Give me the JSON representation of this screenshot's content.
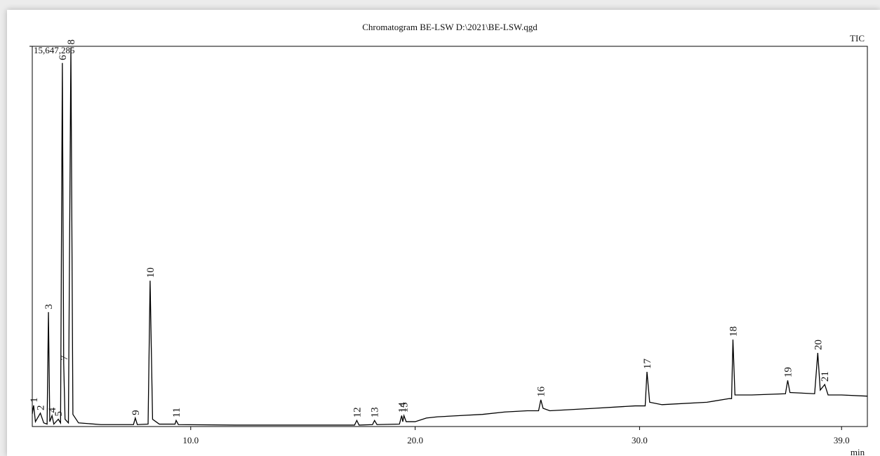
{
  "chart_data": {
    "type": "line",
    "title": "Chromatogram BE-LSW D:\\2021\\BE-LSW.qgd",
    "x_label": "min",
    "xlim": [
      2.94,
      40.15
    ],
    "xticks": [
      {
        "value": 10,
        "label": "10.0"
      },
      {
        "value": 20,
        "label": "20.0"
      },
      {
        "value": 30,
        "label": "30.0"
      },
      {
        "value": 39,
        "label": "39.0"
      }
    ],
    "ylim": [
      0,
      15647285
    ],
    "yticks": [
      {
        "value": 15647285,
        "label": "15,647,285"
      }
    ],
    "x": [
      2.94,
      3.0,
      3.08,
      3.3,
      3.45,
      3.6,
      3.66,
      3.72,
      3.82,
      3.9,
      4.1,
      4.2,
      4.28,
      4.34,
      4.4,
      4.55,
      4.66,
      4.75,
      5.0,
      6.0,
      7.45,
      7.53,
      7.62,
      8.1,
      8.19,
      8.3,
      8.6,
      9.3,
      9.35,
      9.45,
      12.0,
      15.0,
      17.3,
      17.4,
      17.5,
      18.1,
      18.19,
      18.3,
      19.3,
      19.4,
      19.45,
      19.5,
      19.6,
      20.0,
      20.5,
      21.0,
      22.0,
      23.0,
      24.0,
      25.0,
      25.5,
      25.6,
      25.7,
      26.0,
      28.0,
      29.8,
      30.25,
      30.33,
      30.45,
      31.0,
      33.0,
      34.0,
      34.1,
      34.16,
      34.25,
      35.0,
      36.5,
      36.6,
      36.7,
      37.8,
      37.94,
      38.05,
      38.25,
      38.4,
      39.0,
      40.15
    ],
    "point_labels": [
      null,
      "1",
      null,
      "2",
      null,
      null,
      "3",
      null,
      "4",
      null,
      "5",
      null,
      "6",
      "7",
      null,
      null,
      "8",
      null,
      null,
      null,
      null,
      "9",
      null,
      null,
      "10",
      null,
      null,
      null,
      "11",
      null,
      null,
      null,
      null,
      "12",
      null,
      null,
      "13",
      null,
      null,
      "14",
      null,
      "15",
      null,
      null,
      null,
      null,
      null,
      null,
      null,
      null,
      null,
      "16",
      null,
      null,
      null,
      null,
      null,
      "17",
      null,
      null,
      null,
      null,
      null,
      "18",
      null,
      null,
      null,
      "19",
      null,
      null,
      "20",
      null,
      "21",
      null,
      null,
      null
    ],
    "series": [
      {
        "name": "TIC",
        "color": "#000000",
        "values": [
          520000,
          870000,
          200000,
          550000,
          150000,
          100000,
          4710000,
          200000,
          450000,
          100000,
          300000,
          150000,
          14960000,
          2600000,
          300000,
          150000,
          15600000,
          500000,
          150000,
          80000,
          80000,
          350000,
          80000,
          100000,
          6000000,
          300000,
          100000,
          100000,
          250000,
          80000,
          60000,
          60000,
          60000,
          250000,
          60000,
          80000,
          250000,
          80000,
          100000,
          450000,
          200000,
          450000,
          200000,
          200000,
          350000,
          400000,
          450000,
          500000,
          600000,
          650000,
          650000,
          1100000,
          750000,
          650000,
          750000,
          850000,
          850000,
          2250000,
          1000000,
          900000,
          1000000,
          1150000,
          1150000,
          3580000,
          1300000,
          1300000,
          1350000,
          1900000,
          1400000,
          1350000,
          3030000,
          1500000,
          1730000,
          1300000,
          1300000,
          1250000
        ]
      }
    ]
  }
}
